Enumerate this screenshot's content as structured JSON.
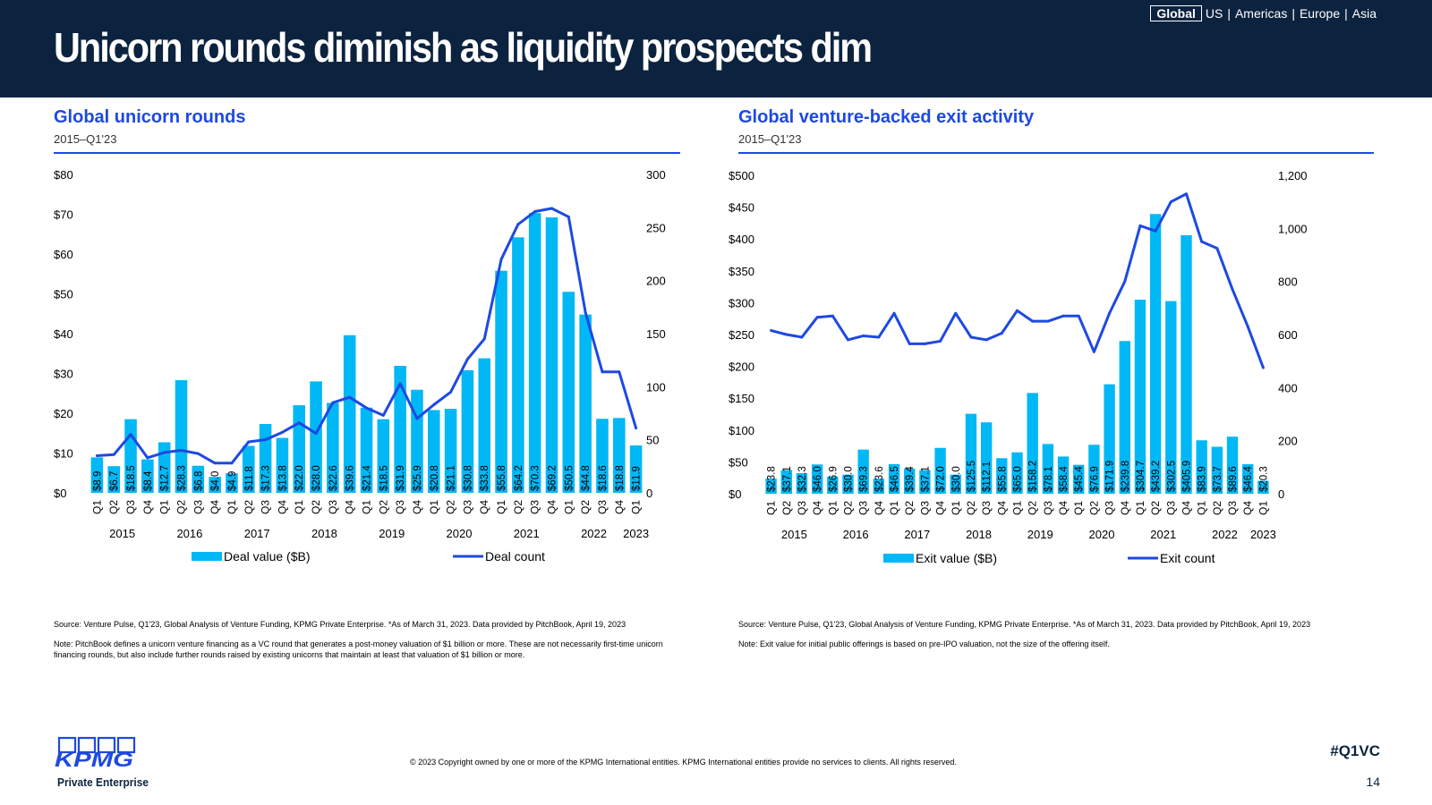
{
  "header": {
    "title": "Unicorn rounds diminish as liquidity prospects dim",
    "regions": [
      "Global",
      "US",
      "Americas",
      "Europe",
      "Asia"
    ],
    "active_region": "Global"
  },
  "colors": {
    "navy": "#0c2340",
    "bar": "#00b8f5",
    "line": "#1e49e2",
    "accent_blue": "#1e49e2"
  },
  "left_panel": {
    "title": "Global unicorn rounds",
    "subtitle": "2015–Q1'23",
    "source_note": "Source: Venture Pulse, Q1'23, Global Analysis of Venture Funding, KPMG Private Enterprise. *As of March 31, 2023. Data provided by PitchBook, April 19, 2023",
    "definition_note": "Note: PitchBook defines a unicorn venture financing as a VC round that generates a post-money valuation of $1 billion or more. These are not necessarily first-time unicorn financing rounds, but also include further rounds raised by existing unicorns that maintain at least that valuation of $1 billion or more."
  },
  "right_panel": {
    "title": "Global venture-backed exit activity",
    "subtitle": "2015–Q1'23",
    "source_note": "Source: Venture Pulse, Q1'23, Global Analysis of Venture Funding, KPMG Private Enterprise. *As of March 31, 2023. Data provided by PitchBook, April 19, 2023",
    "definition_note": "Note: Exit value for initial public offerings is based on pre-IPO valuation, not the size of the offering itself."
  },
  "chart_data": [
    {
      "type": "bar",
      "quarters": [
        "Q1",
        "Q2",
        "Q3",
        "Q4",
        "Q1",
        "Q2",
        "Q3",
        "Q4",
        "Q1",
        "Q2",
        "Q3",
        "Q4",
        "Q1",
        "Q2",
        "Q3",
        "Q4",
        "Q1",
        "Q2",
        "Q3",
        "Q4",
        "Q1",
        "Q2",
        "Q3",
        "Q4",
        "Q1",
        "Q2",
        "Q3",
        "Q4",
        "Q1",
        "Q2",
        "Q3",
        "Q4",
        "Q1"
      ],
      "years": [
        "2015",
        "2016",
        "2017",
        "2018",
        "2019",
        "2020",
        "2021",
        "2022",
        "2023"
      ],
      "y_ticks": [
        "$0",
        "$10",
        "$20",
        "$30",
        "$40",
        "$50",
        "$60",
        "$70",
        "$80"
      ],
      "y2_ticks": [
        "0",
        "50",
        "100",
        "150",
        "200",
        "250",
        "300"
      ],
      "ylim": [
        0,
        80
      ],
      "y2lim": [
        0,
        300
      ],
      "value_labels": [
        "$8.9",
        "$6.7",
        "$18.5",
        "$8.4",
        "$12.7",
        "$28.3",
        "$6.8",
        "$4.0",
        "$4.9",
        "$11.8",
        "$17.3",
        "$13.8",
        "$22.0",
        "$28.0",
        "$22.6",
        "$39.6",
        "$21.4",
        "$18.5",
        "$31.9",
        "$25.9",
        "$20.8",
        "$21.1",
        "$30.8",
        "$33.8",
        "$55.8",
        "$64.2",
        "$70.3",
        "$69.2",
        "$50.5",
        "$44.8",
        "$18.6",
        "$18.8",
        "$11.9"
      ],
      "series": [
        {
          "name": "Deal value ($B)",
          "kind": "bar",
          "values": [
            8.9,
            6.7,
            18.5,
            8.4,
            12.7,
            28.3,
            6.8,
            4.0,
            4.9,
            11.8,
            17.3,
            13.8,
            22.0,
            28.0,
            22.6,
            39.6,
            21.4,
            18.5,
            31.9,
            25.9,
            20.8,
            21.1,
            30.8,
            33.8,
            55.8,
            64.2,
            70.3,
            69.2,
            50.5,
            44.8,
            18.6,
            18.8,
            11.9
          ]
        },
        {
          "name": "Deal count",
          "kind": "line",
          "values": [
            35,
            36,
            55,
            33,
            38,
            40,
            37,
            28,
            28,
            48,
            50,
            57,
            66,
            56,
            85,
            90,
            80,
            73,
            103,
            70,
            83,
            95,
            126,
            145,
            220,
            253,
            265,
            268,
            260,
            170,
            114,
            114,
            61
          ]
        }
      ],
      "legend": "bottom"
    },
    {
      "type": "bar",
      "quarters": [
        "Q1",
        "Q2",
        "Q3",
        "Q4",
        "Q1",
        "Q2",
        "Q3",
        "Q4",
        "Q1",
        "Q2",
        "Q3",
        "Q4",
        "Q1",
        "Q2",
        "Q3",
        "Q4",
        "Q1",
        "Q2",
        "Q3",
        "Q4",
        "Q1",
        "Q2",
        "Q3",
        "Q4",
        "Q1",
        "Q2",
        "Q3",
        "Q4",
        "Q1",
        "Q2",
        "Q3",
        "Q4",
        "Q1"
      ],
      "years": [
        "2015",
        "2016",
        "2017",
        "2018",
        "2019",
        "2020",
        "2021",
        "2022",
        "2023"
      ],
      "y_ticks": [
        "$0",
        "$50",
        "$100",
        "$150",
        "$200",
        "$250",
        "$300",
        "$350",
        "$400",
        "$450",
        "$500"
      ],
      "y2_ticks": [
        "0",
        "200",
        "400",
        "600",
        "800",
        "1,000",
        "1,200"
      ],
      "ylim": [
        0,
        500
      ],
      "y2lim": [
        0,
        1200
      ],
      "value_labels": [
        "$23.8",
        "$37.1",
        "$32.3",
        "$46.0",
        "$26.9",
        "$30.0",
        "$69.3",
        "$23.6",
        "$46.5",
        "$39.4",
        "$37.1",
        "$72.0",
        "$30.0",
        "$125.5",
        "$112.1",
        "$55.8",
        "$65.0",
        "$158.2",
        "$78.1",
        "$58.4",
        "$45.4",
        "$76.9",
        "$171.9",
        "$239.8",
        "$304.7",
        "$439.2",
        "$302.5",
        "$405.9",
        "$83.9",
        "$73.7",
        "$89.6",
        "$46.4",
        "$20.3"
      ],
      "series": [
        {
          "name": "Exit value ($B)",
          "kind": "bar",
          "values": [
            23.8,
            37.1,
            32.3,
            46.0,
            26.9,
            30.0,
            69.3,
            23.6,
            46.5,
            39.4,
            37.1,
            72.0,
            30.0,
            125.5,
            112.1,
            55.8,
            65.0,
            158.2,
            78.1,
            58.4,
            45.4,
            76.9,
            171.9,
            239.8,
            304.7,
            439.2,
            302.5,
            405.9,
            83.9,
            73.7,
            89.6,
            46.4,
            20.3
          ]
        },
        {
          "name": "Exit count",
          "kind": "line",
          "values": [
            615,
            600,
            590,
            665,
            670,
            580,
            595,
            590,
            680,
            565,
            565,
            575,
            680,
            590,
            580,
            605,
            690,
            650,
            650,
            670,
            670,
            535,
            680,
            800,
            1010,
            990,
            1100,
            1130,
            950,
            925,
            770,
            630,
            475
          ]
        }
      ],
      "legend": "bottom"
    }
  ],
  "footer": {
    "logo_text": "KPMG",
    "logo_subtext": "Private Enterprise",
    "copyright": "© 2023 Copyright owned by one or more of the KPMG International entities. KPMG International entities provide no services to clients. All rights reserved.",
    "hashtag": "#Q1VC",
    "page_number": "14"
  }
}
